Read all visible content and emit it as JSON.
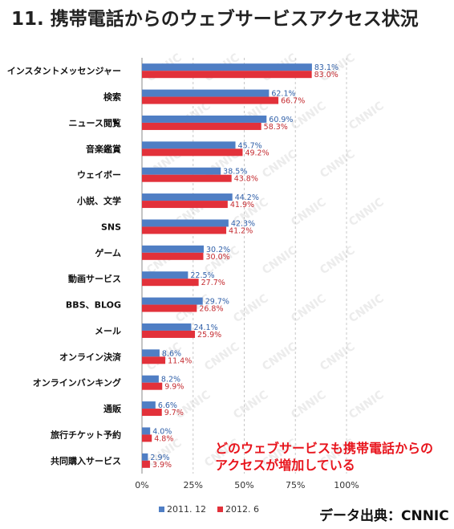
{
  "title": "11. 携帯電話からのウェブサービスアクセス状況",
  "note": [
    "どのウェブサービスも携帯電話からの",
    "アクセスが増加している"
  ],
  "source": "データ出典：CNNIC",
  "watermark": "CNNIC",
  "colors": {
    "series_2011": "#4f7ec4",
    "series_2012": "#e2313a",
    "label_2011": "#2f5fa8",
    "label_2012": "#c42a2f"
  },
  "chart_data": {
    "type": "bar",
    "orientation": "horizontal",
    "categories": [
      "インスタントメッセンジャー",
      "検索",
      "ニュース閲覧",
      "音楽鑑賞",
      "ウェイボー",
      "小説、文学",
      "SNS",
      "ゲーム",
      "動画サービス",
      "BBS、BLOG",
      "メール",
      "オンライン決済",
      "オンラインバンキング",
      "通販",
      "旅行チケット予約",
      "共同購入サービス"
    ],
    "series": [
      {
        "name": "2011. 12",
        "values": [
          83.1,
          62.1,
          60.9,
          45.7,
          38.5,
          44.2,
          42.3,
          30.2,
          22.5,
          29.7,
          24.1,
          8.6,
          8.2,
          6.6,
          4.0,
          2.9
        ],
        "labels": [
          "83.1%",
          "62.1%",
          "60.9%",
          "45.7%",
          "38.5%",
          "44.2%",
          "42.3%",
          "30.2%",
          "22.5%",
          "29.7%",
          "24.1%",
          "8.6%",
          "8.2%",
          "6.6%",
          "4.0%",
          "2.9%"
        ]
      },
      {
        "name": "2012. 6",
        "values": [
          83.0,
          66.7,
          58.3,
          49.2,
          43.8,
          41.9,
          41.2,
          30.0,
          27.7,
          26.8,
          25.9,
          11.4,
          9.9,
          9.7,
          4.8,
          3.9
        ],
        "labels": [
          "83.0%",
          "66.7%",
          "58.3%",
          "49.2%",
          "43.8%",
          "41.9%",
          "41.2%",
          "30.0%",
          "27.7%",
          "26.8%",
          "25.9%",
          "11.4%",
          "9.9%",
          "9.7%",
          "4.8%",
          "3.9%"
        ]
      }
    ],
    "xlim": [
      0,
      100
    ],
    "xticks": [
      "0%",
      "25%",
      "50%",
      "75%",
      "100%"
    ],
    "xtick_values": [
      0,
      25,
      50,
      75,
      100
    ],
    "grid": "dashed vertical",
    "legend_position": "bottom"
  }
}
